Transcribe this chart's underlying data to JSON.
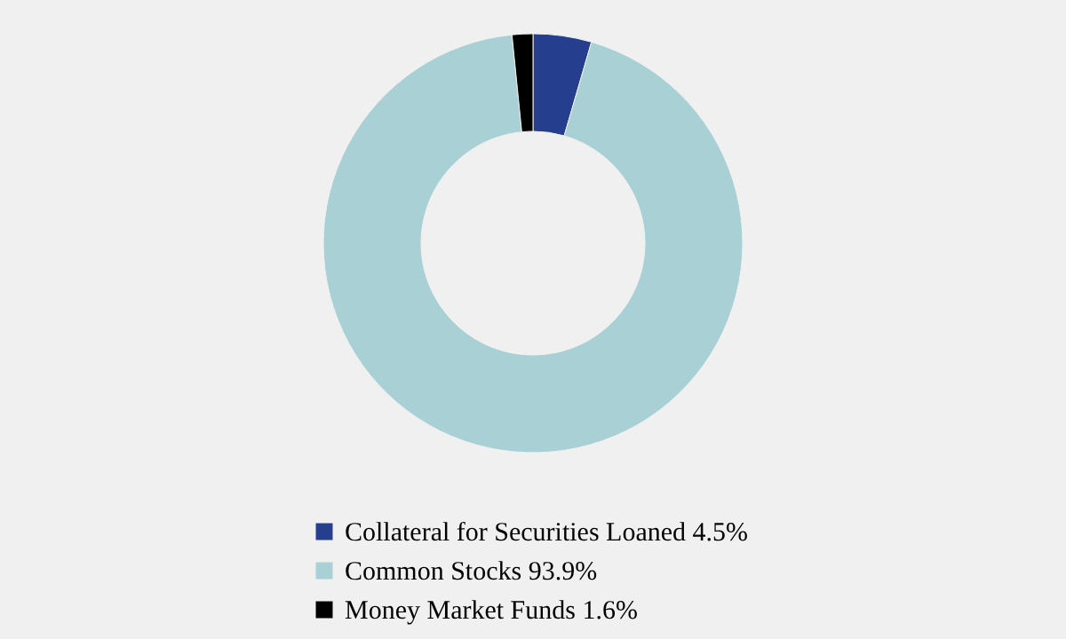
{
  "chart_data": {
    "type": "donut",
    "categories": [
      "Collateral for Securities Loaned 4.5%",
      "Common Stocks 93.9%",
      "Money Market Funds 1.6%"
    ],
    "values": [
      4.5,
      93.9,
      1.6
    ],
    "colors": [
      "#253f8e",
      "#a8d0d5",
      "#000000"
    ],
    "legend": "bottom"
  }
}
